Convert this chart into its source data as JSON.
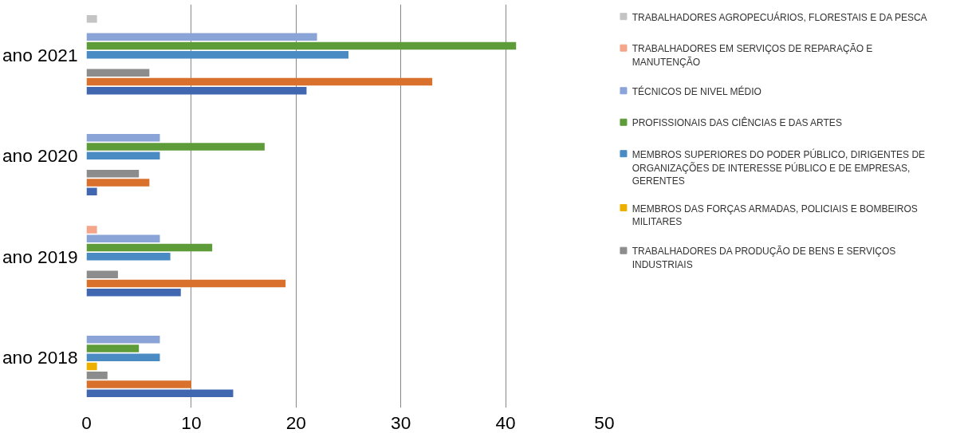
{
  "chart_data": {
    "type": "bar",
    "orientation": "horizontal",
    "categories": [
      "ano 2021",
      "ano 2020",
      "ano 2019",
      "ano 2018"
    ],
    "series": [
      {
        "color": "#4067b0",
        "values": [
          21,
          1,
          9,
          14
        ]
      },
      {
        "color": "#d9702b",
        "values": [
          33,
          6,
          19,
          10
        ]
      },
      {
        "name": "TRABALHADORES DA PRODUÇÃO DE BENS E SERVIÇOS INDUSTRIAIS",
        "color": "#8c8c8c",
        "values": [
          6,
          5,
          3,
          2
        ]
      },
      {
        "name": "MEMBROS DAS FORÇAS ARMADAS, POLICIAIS E BOMBEIROS MILITARES",
        "color": "#eeb000",
        "values": [
          0,
          0,
          0,
          1
        ]
      },
      {
        "name": "MEMBROS SUPERIORES DO PODER PÚBLICO, DIRIGENTES DE ORGANIZAÇÕES DE INTERESSE PÚBLICO E DE EMPRESAS, GERENTES",
        "color": "#4a8bc4",
        "values": [
          25,
          7,
          8,
          7
        ]
      },
      {
        "name": "PROFISSIONAIS DAS CIÊNCIAS E DAS ARTES",
        "color": "#5e9c3a",
        "values": [
          41,
          17,
          12,
          5
        ]
      },
      {
        "name": "TÉCNICOS DE NIVEL MÉDIO",
        "color": "#8aa4d8",
        "values": [
          22,
          7,
          7,
          7
        ]
      },
      {
        "name": "TRABALHADORES EM SERVIÇOS DE REPARAÇÃO E MANUTENÇÃO",
        "color": "#f4a58a",
        "values": [
          0,
          0,
          1,
          0
        ]
      },
      {
        "name": "TRABALHADORES AGROPECUÁRIOS, FLORESTAIS E DA PESCA",
        "color": "#c4c4c4",
        "values": [
          1,
          0,
          0,
          0
        ]
      }
    ],
    "xlim": [
      0,
      50
    ],
    "xticks": [
      0,
      10,
      20,
      30,
      40,
      50
    ],
    "grid": "x",
    "legend": "right"
  }
}
